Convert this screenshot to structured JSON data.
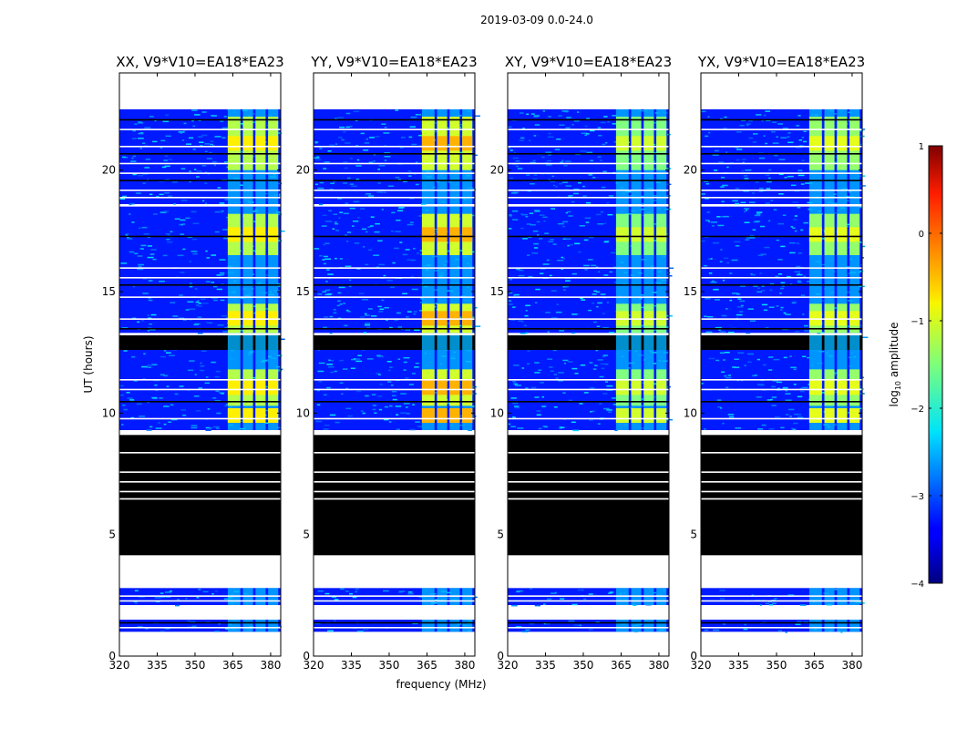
{
  "chart_data": {
    "type": "heatmap",
    "suptitle": "2019-03-09 0.0-24.0",
    "xlabel": "frequency (MHz)",
    "ylabel": "UT (hours)",
    "xlim": [
      320,
      384
    ],
    "ylim": [
      0,
      24
    ],
    "xticks": [
      320,
      335,
      350,
      365,
      380
    ],
    "yticks": [
      0,
      5,
      10,
      15,
      20
    ],
    "colorbar": {
      "label": "log10 amplitude",
      "label_prefix": "log",
      "label_sub": "10",
      "label_suffix": " amplitude",
      "range": [
        -4,
        1
      ],
      "ticks": [
        -4,
        -3,
        -2,
        -1,
        0,
        1
      ],
      "tick_labels": [
        "−4",
        "−3",
        "−2",
        "−1",
        "0",
        "1"
      ],
      "colormap": "jet"
    },
    "panels": [
      {
        "title": "XX, V9*V10=EA18*EA23",
        "bright_level": 0.55,
        "strong_level": 0.64
      },
      {
        "title": "YY, V9*V10=EA18*EA23",
        "bright_level": 0.58,
        "strong_level": 0.7
      },
      {
        "title": "XY, V9*V10=EA18*EA23",
        "bright_level": 0.5,
        "strong_level": 0.58
      },
      {
        "title": "YX, V9*V10=EA18*EA23",
        "bright_level": 0.52,
        "strong_level": 0.6
      }
    ],
    "data_blocks_hours": [
      [
        1.0,
        1.5
      ],
      [
        2.1,
        2.8
      ],
      [
        9.3,
        13.2
      ],
      [
        13.3,
        18.5
      ],
      [
        18.6,
        22.5
      ]
    ],
    "black_blocks_hours": [
      [
        4.15,
        9.1
      ],
      [
        12.6,
        13.2
      ]
    ],
    "rfi_bands_mhz": [
      [
        363,
        368
      ],
      [
        369,
        373
      ],
      [
        374,
        378
      ],
      [
        379,
        383
      ]
    ],
    "rfi_bright_hours": [
      [
        9.6,
        10.2
      ],
      [
        10.3,
        11.8
      ],
      [
        13.3,
        14.5
      ],
      [
        16.5,
        18.2
      ],
      [
        20.0,
        22.2
      ]
    ]
  }
}
